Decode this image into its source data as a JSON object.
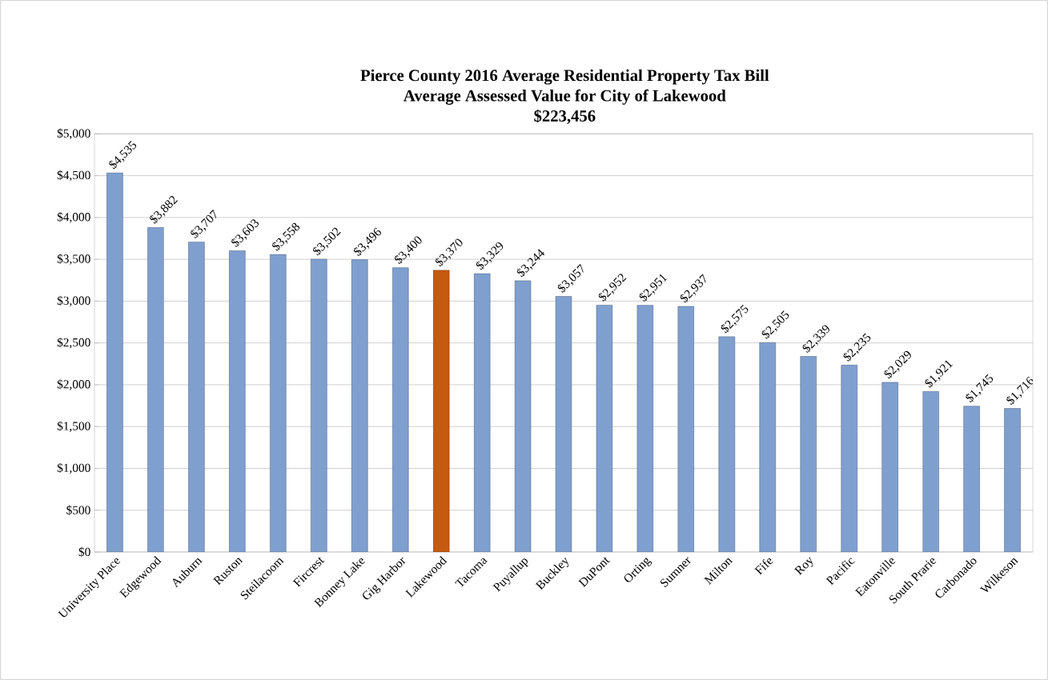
{
  "chart_data": {
    "type": "bar",
    "title": "Pierce County 2016 Average Residential Property Tax Bill",
    "subtitle": "Average Assessed Value for City of Lakewood",
    "annotations": [
      "$223,456"
    ],
    "categories": [
      "University Place",
      "Edgewood",
      "Auburn",
      "Ruston",
      "Steilacoom",
      "Fircrest",
      "Bonney Lake",
      "Gig Harbor",
      "Lakewood",
      "Tacoma",
      "Puyallup",
      "Buckley",
      "DuPont",
      "Orting",
      "Sumner",
      "Milton",
      "Fife",
      "Roy",
      "Pacific",
      "Eatonville",
      "South Prarie",
      "Carbonado",
      "Wilkeson"
    ],
    "values": [
      4535,
      3882,
      3707,
      3603,
      3558,
      3502,
      3496,
      3400,
      3370,
      3329,
      3244,
      3057,
      2952,
      2951,
      2937,
      2575,
      2505,
      2339,
      2235,
      2029,
      1921,
      1745,
      1716
    ],
    "value_labels": [
      "$4,535",
      "$3,882",
      "$3,707",
      "$3,603",
      "$3,558",
      "$3,502",
      "$3,496",
      "$3,400",
      "$3,370",
      "$3,329",
      "$3,244",
      "$3,057",
      "$2,952",
      "$2,951",
      "$2,937",
      "$2,575",
      "$2,505",
      "$2,339",
      "$2,235",
      "$2,029",
      "$1,921",
      "$1,745",
      "$1,716"
    ],
    "colors": [
      "#7f9fcf",
      "#7f9fcf",
      "#7f9fcf",
      "#7f9fcf",
      "#7f9fcf",
      "#7f9fcf",
      "#7f9fcf",
      "#7f9fcf",
      "#c55a11",
      "#7f9fcf",
      "#7f9fcf",
      "#7f9fcf",
      "#7f9fcf",
      "#7f9fcf",
      "#7f9fcf",
      "#7f9fcf",
      "#7f9fcf",
      "#7f9fcf",
      "#7f9fcf",
      "#7f9fcf",
      "#7f9fcf",
      "#7f9fcf",
      "#7f9fcf"
    ],
    "ylim": [
      0,
      5000
    ],
    "yticks": [
      {
        "value": 0,
        "label": "$0"
      },
      {
        "value": 500,
        "label": "$500"
      },
      {
        "value": 1000,
        "label": "$1,000"
      },
      {
        "value": 1500,
        "label": "$1,500"
      },
      {
        "value": 2000,
        "label": "$2,000"
      },
      {
        "value": 2500,
        "label": "$2,500"
      },
      {
        "value": 3000,
        "label": "$3,000"
      },
      {
        "value": 3500,
        "label": "$3,500"
      },
      {
        "value": 4000,
        "label": "$4,000"
      },
      {
        "value": 4500,
        "label": "$4,500"
      },
      {
        "value": 5000,
        "label": "$5,000"
      }
    ],
    "grid": "y"
  }
}
